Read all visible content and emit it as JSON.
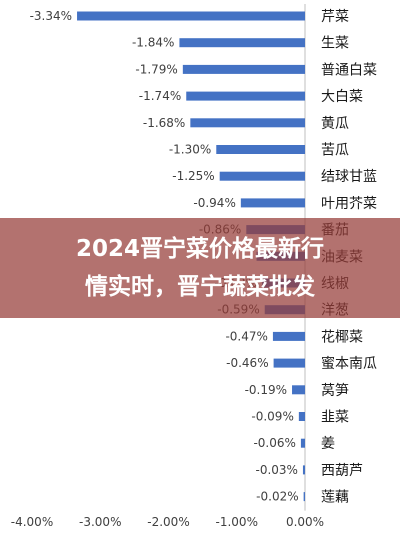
{
  "chart_data": {
    "type": "bar",
    "orientation": "horizontal",
    "categories": [
      "芹菜",
      "生菜",
      "普通白菜",
      "大白菜",
      "黄瓜",
      "苦瓜",
      "结球甘蓝",
      "叶用芥菜",
      "番茄",
      "油麦菜",
      "线椒",
      "洋葱",
      "花椰菜",
      "蜜本南瓜",
      "莴笋",
      "韭菜",
      "姜",
      "西葫芦",
      "莲藕"
    ],
    "values": [
      -3.34,
      -1.84,
      -1.79,
      -1.74,
      -1.68,
      -1.3,
      -1.25,
      -0.94,
      -0.86,
      -0.71,
      -0.63,
      -0.59,
      -0.47,
      -0.46,
      -0.19,
      -0.09,
      -0.06,
      -0.03,
      -0.02
    ],
    "data_labels": [
      "-3.34%",
      "-1.84%",
      "-1.79%",
      "-1.74%",
      "-1.68%",
      "-1.30%",
      "-1.25%",
      "-0.94%",
      "-0.86%",
      "",
      "-0.63%",
      "-0.59%",
      "-0.47%",
      "-0.46%",
      "-0.19%",
      "-0.09%",
      "-0.06%",
      "-0.03%",
      "-0.02%"
    ],
    "xlim": [
      -4.0,
      0.0
    ],
    "x_ticks": [
      "-4.00%",
      "-3.00%",
      "-2.00%",
      "-1.00%",
      "0.00%"
    ],
    "bar_color": "#4472C4",
    "grid": false
  },
  "banner": {
    "line1": "2024晋宁菜价格最新行",
    "line2": "情实时，晋宁蔬菜批发"
  }
}
